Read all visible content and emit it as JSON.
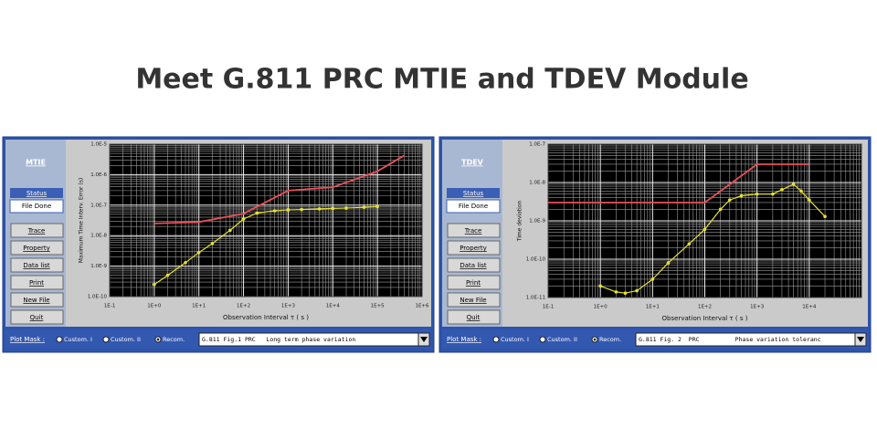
{
  "title": "Meet G.811 PRC MTIE and TDEV Module",
  "windows": [
    {
      "tab": "MTIE",
      "status_title": "Status",
      "status": "File Done",
      "buttons": [
        "Trace",
        "Property",
        "Data list",
        "Print",
        "New File",
        "Quit"
      ],
      "plot_mask": "Plot Mask :",
      "options": [
        "Custom. I",
        "Custom. II",
        "Recom."
      ],
      "selection": "G.811 Fig.1 PRC   Long term phase variation"
    },
    {
      "tab": "TDEV",
      "status_title": "Status",
      "status": "File Done",
      "buttons": [
        "Trace",
        "Property",
        "Data list",
        "Print",
        "New File",
        "Quit"
      ],
      "plot_mask": "Plot Mask :",
      "options": [
        "Custom. I",
        "Custom. II",
        "Recom."
      ],
      "selection": "G.811 Fig. 2  PRC          Phase variation toleranc"
    }
  ],
  "chart_data": [
    {
      "type": "line",
      "xlabel": "Observation Interval τ ( s )",
      "ylabel": "Maximum Time Interv. Error (s)",
      "log_x": true,
      "log_y": true,
      "grid": true,
      "xlim": [
        0.1,
        1000000
      ],
      "ylim": [
        1e-10,
        1e-05
      ],
      "xticks": [
        {
          "value": 0.1,
          "label": "1E-1"
        },
        {
          "value": 1,
          "label": "1E+0"
        },
        {
          "value": 10,
          "label": "1E+1"
        },
        {
          "value": 100,
          "label": "1E+2"
        },
        {
          "value": 1000,
          "label": "1E+3"
        },
        {
          "value": 10000,
          "label": "1E+4"
        },
        {
          "value": 100000,
          "label": "1E+5"
        },
        {
          "value": 1000000,
          "label": "1E+6"
        }
      ],
      "yticks": [
        {
          "value": 1e-05,
          "label": "1.0E-5"
        },
        {
          "value": 1e-06,
          "label": "1.0E-6"
        },
        {
          "value": 1e-07,
          "label": "1.0E-7"
        },
        {
          "value": 1e-08,
          "label": "1.0E-8"
        },
        {
          "value": 1e-09,
          "label": "1.0E-9"
        },
        {
          "value": 1e-10,
          "label": "1.0E-10"
        }
      ],
      "series": [
        {
          "color": "#e8505a",
          "markers": false,
          "x": [
            1,
            10,
            100,
            1000,
            10000,
            100000,
            400000
          ],
          "values": [
            2.5e-08,
            2.8e-08,
            5.25e-08,
            3e-07,
            3.9e-07,
            1.29e-06,
            4.29e-06
          ]
        },
        {
          "color": "#e6e22e",
          "markers": true,
          "x": [
            1,
            2,
            5,
            10,
            20,
            50,
            100,
            200,
            500,
            1000,
            2000,
            5000,
            10000,
            20000,
            50000,
            100000
          ],
          "values": [
            2.5e-10,
            5e-10,
            1.3e-09,
            2.8e-09,
            5.5e-09,
            1.5e-08,
            3.5e-08,
            5.5e-08,
            6.5e-08,
            7e-08,
            7.2e-08,
            7.5e-08,
            7.8e-08,
            8e-08,
            8.5e-08,
            9e-08
          ]
        }
      ]
    },
    {
      "type": "line",
      "xlabel": "Observation Interval τ ( s )",
      "ylabel": "Time deviation",
      "log_x": true,
      "log_y": true,
      "grid": true,
      "xlim": [
        0.1,
        100000
      ],
      "ylim": [
        1e-11,
        1e-07
      ],
      "xticks": [
        {
          "value": 0.1,
          "label": "1E-1"
        },
        {
          "value": 1,
          "label": "1E+0"
        },
        {
          "value": 10,
          "label": "1E+1"
        },
        {
          "value": 100,
          "label": "1E+2"
        },
        {
          "value": 1000,
          "label": "1E+3"
        },
        {
          "value": 10000,
          "label": "1E+4"
        }
      ],
      "yticks": [
        {
          "value": 1e-07,
          "label": "1.0E-7"
        },
        {
          "value": 1e-08,
          "label": "1.0E-8"
        },
        {
          "value": 1e-09,
          "label": "1.0E-9"
        },
        {
          "value": 1e-10,
          "label": "1.0E-10"
        },
        {
          "value": 1e-11,
          "label": "1.0E-11"
        }
      ],
      "series": [
        {
          "color": "#e8505a",
          "markers": false,
          "x": [
            0.1,
            100,
            1000,
            10000
          ],
          "values": [
            3e-09,
            3e-09,
            3e-08,
            3e-08
          ]
        },
        {
          "color": "#e6e22e",
          "markers": true,
          "x": [
            1,
            2,
            3,
            5,
            10,
            20,
            50,
            100,
            200,
            300,
            500,
            1000,
            2000,
            3000,
            5000,
            7000,
            10000,
            20000
          ],
          "values": [
            2e-11,
            1.4e-11,
            1.3e-11,
            1.5e-11,
            3e-11,
            8e-11,
            2.5e-10,
            6e-10,
            2e-09,
            3.5e-09,
            4.5e-09,
            5e-09,
            5e-09,
            6.5e-09,
            9e-09,
            6e-09,
            3.5e-09,
            1.3e-09
          ]
        }
      ]
    }
  ]
}
